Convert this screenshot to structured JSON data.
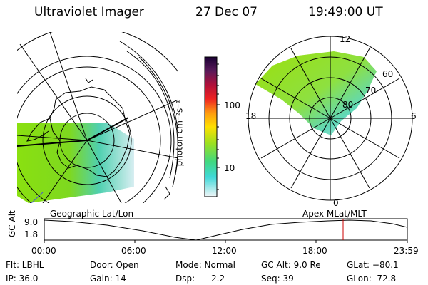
{
  "header": {
    "title": "Ultraviolet Imager",
    "date": "27 Dec 07",
    "time": "19:49:00 UT"
  },
  "colorbar": {
    "label": "photon cm⁻²s⁻¹",
    "ticks": [
      "100",
      "10"
    ]
  },
  "polar_plot": {
    "labels": [
      "12",
      "18",
      "6",
      "0",
      "60",
      "70",
      "80"
    ]
  },
  "timeline": {
    "ylabel": "GC Alt",
    "left_caption": "Geographic Lat/Lon",
    "right_caption": "Apex MLat/MLT",
    "yticks": [
      "9.0",
      "1.8"
    ],
    "xticks": [
      "00:00",
      "06:00",
      "12:00",
      "18:00",
      "23:59"
    ],
    "marker_time": "19:49"
  },
  "footer": {
    "rows": [
      [
        "Flt: LBHL",
        "Door: Open",
        "Mode: Normal",
        "GC Alt: 9.0 Re",
        "GLat: −80.1"
      ],
      [
        "IP: 36.0",
        "Gain: 14",
        "Dsp:      2.2",
        "Seq: 39",
        "GLon:  72.8"
      ]
    ]
  },
  "colors": {
    "marker": "#cc0000"
  }
}
